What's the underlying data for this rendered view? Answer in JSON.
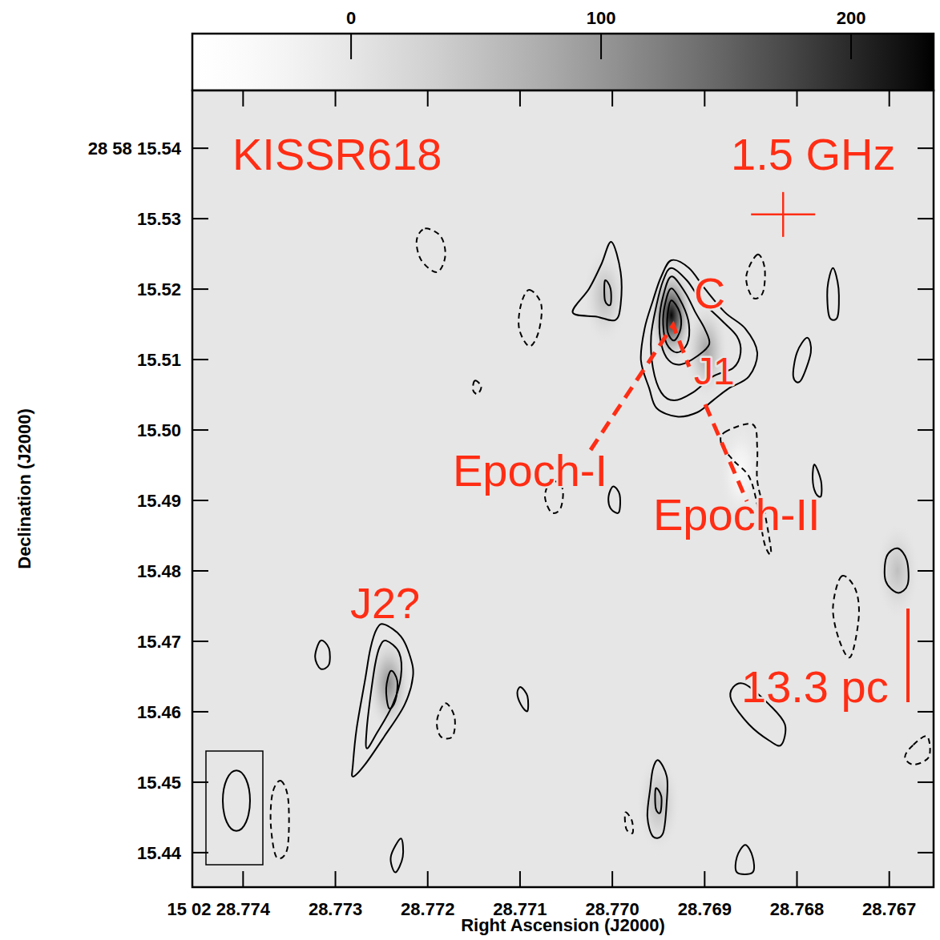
{
  "chart_data": {
    "type": "contour",
    "title": "KISSR618",
    "subtitle": "1.5 GHz",
    "x_label": "Right Ascension (J2000)",
    "y_label": "Declination (J2000)",
    "color": "#ff2d14",
    "xlim": [
      28.77455,
      28.76652
    ],
    "xticks": [
      {
        "value": 28.774,
        "label": "15 02 28.774"
      },
      28.773,
      28.772,
      28.771,
      {
        "value": 28.77,
        "label": "28.770"
      },
      28.769,
      28.768,
      28.767
    ],
    "ylim": [
      15.5482,
      15.4351
    ],
    "yticks": [
      {
        "value": 15.54,
        "label": "28 58 15.54"
      },
      15.53,
      15.52,
      15.51,
      {
        "value": 15.5,
        "label": "15.50"
      },
      15.49,
      15.48,
      15.47,
      15.46,
      15.45,
      15.44
    ],
    "colorbar": {
      "range": [
        -63.5,
        233
      ],
      "ticks": [
        0,
        100,
        200
      ]
    },
    "components": [
      {
        "ra": 28.76936,
        "dec": 15.5163,
        "peak": 230
      },
      {
        "ra": 28.76898,
        "dec": 15.5113,
        "peak": 90
      },
      {
        "ra": 28.77008,
        "dec": 15.519,
        "peak": 60
      },
      {
        "ra": 28.77242,
        "dec": 15.464,
        "peak": 110
      },
      {
        "ra": 28.7695,
        "dec": 15.447,
        "peak": 60
      },
      {
        "ra": 28.76691,
        "dec": 15.48,
        "peak": 55
      },
      {
        "ra": 28.76861,
        "dec": 15.494,
        "peak": -45
      }
    ],
    "beam": {
      "ra_width": 0.000295,
      "dec_height": 0.0086
    },
    "cross": {
      "ra": 28.76815,
      "dec": 15.5306
    },
    "scale_bar": {
      "value": 13.3,
      "label": "13.3 pc"
    },
    "annotations": [
      "C",
      "J1",
      "Epoch-I",
      "Epoch-II",
      "J2?"
    ],
    "contours": [
      {
        "level": 25,
        "ra": [
          28.76936,
          28.76917,
          28.769,
          28.76878,
          28.76856,
          28.76843,
          28.76852,
          28.76874,
          28.76891,
          28.76908,
          28.7693,
          28.76952,
          28.7696,
          28.76969,
          28.76965,
          28.76956,
          28.76947
        ],
        "dec": [
          15.5241,
          15.523,
          15.5201,
          15.5167,
          15.5144,
          15.511,
          15.5076,
          15.5059,
          15.5042,
          15.5025,
          15.5019,
          15.5031,
          15.5059,
          15.5099,
          15.5144,
          15.5184,
          15.5218
        ]
      },
      {
        "level": 50,
        "ra": [
          28.76936,
          28.76919,
          28.76904,
          28.76882,
          28.76865,
          28.76861,
          28.76869,
          28.76891,
          28.76913,
          28.76933,
          28.76947,
          28.76956,
          28.76958,
          28.76952,
          28.76945
        ],
        "dec": [
          15.523,
          15.5212,
          15.5184,
          15.5156,
          15.5133,
          15.511,
          15.5088,
          15.5076,
          15.5053,
          15.5042,
          15.5053,
          15.5088,
          15.5133,
          15.5178,
          15.5212
        ]
      },
      {
        "level": 100,
        "ra": [
          28.76936,
          28.76921,
          28.7691,
          28.769,
          28.76895,
          28.76908,
          28.76926,
          28.76939,
          28.76947,
          28.76949,
          28.76945
        ],
        "dec": [
          15.5218,
          15.5195,
          15.5167,
          15.5144,
          15.5122,
          15.5105,
          15.5093,
          15.5099,
          15.5122,
          15.5156,
          15.519
        ]
      },
      {
        "level": 150,
        "ra": [
          28.76936,
          28.76924,
          28.76917,
          28.76919,
          28.7693,
          28.76941,
          28.76945,
          28.76943
        ],
        "dec": [
          15.5201,
          15.5178,
          15.515,
          15.5122,
          15.511,
          15.5122,
          15.515,
          15.5178
        ]
      },
      {
        "level": 200,
        "ra": [
          28.76936,
          28.76927,
          28.76926,
          28.76933,
          28.7694,
          28.7694
        ],
        "dec": [
          15.5184,
          15.5167,
          15.5144,
          15.5127,
          15.5139,
          15.5165
        ]
      },
      {
        "level": 25,
        "ra": [
          28.77001,
          28.76991,
          28.76991,
          28.76997,
          28.77017,
          28.77043,
          28.77025,
          28.77012
        ],
        "dec": [
          15.5267,
          15.5224,
          15.5178,
          15.5156,
          15.5161,
          15.5167,
          15.5201,
          15.5235
        ]
      },
      {
        "level": 50,
        "ra": [
          28.77008,
          28.77002,
          28.77002,
          28.77008
        ],
        "dec": [
          15.5212,
          15.5201,
          15.5178,
          15.5184
        ]
      },
      {
        "level": 25,
        "ra": [
          28.77247,
          28.77229,
          28.77219,
          28.77216,
          28.77225,
          28.77247,
          28.77268,
          28.77281,
          28.77281,
          28.77277,
          28.77268,
          28.77262,
          28.77255
        ],
        "dec": [
          15.4724,
          15.4707,
          15.4678,
          15.465,
          15.461,
          15.4565,
          15.4525,
          15.4508,
          15.4525,
          15.4576,
          15.4644,
          15.469,
          15.4718
        ]
      },
      {
        "level": 50,
        "ra": [
          28.77245,
          28.77231,
          28.77229,
          28.77238,
          28.77255,
          28.77266,
          28.77266,
          28.77262,
          28.77257,
          28.77252
        ],
        "dec": [
          15.4701,
          15.4684,
          15.465,
          15.461,
          15.457,
          15.4548,
          15.4576,
          15.4622,
          15.4667,
          15.4692
        ]
      },
      {
        "level": 100,
        "ra": [
          28.7724,
          28.77233,
          28.77235,
          28.77242,
          28.77245
        ],
        "dec": [
          15.4658,
          15.4644,
          15.4616,
          15.4605,
          15.4633
        ]
      },
      {
        "level": 25,
        "ra": [
          28.77316,
          28.77307,
          28.77307,
          28.77316,
          28.77322
        ],
        "dec": [
          15.4701,
          15.469,
          15.4667,
          15.4661,
          15.4678
        ]
      },
      {
        "level": 25,
        "ra": [
          28.77099,
          28.77092,
          28.77092,
          28.77099,
          28.77103
        ],
        "dec": [
          15.4635,
          15.4622,
          15.4601,
          15.461,
          15.4627
        ]
      },
      {
        "level": 25,
        "ra": [
          28.7695,
          28.76941,
          28.76941,
          28.76945,
          28.76956,
          28.76962,
          28.76959,
          28.76956
        ],
        "dec": [
          15.4531,
          15.4508,
          15.4474,
          15.4428,
          15.4423,
          15.4451,
          15.4491,
          15.4519
        ]
      },
      {
        "level": 50,
        "ra": [
          28.76953,
          28.76947,
          28.76948,
          28.76953
        ],
        "dec": [
          15.4491,
          15.448,
          15.4457,
          15.4463
        ]
      },
      {
        "level": 25,
        "ra": [
          28.76691,
          28.76681,
          28.7668,
          28.76691,
          28.76704,
          28.76703
        ],
        "dec": [
          15.4832,
          15.4815,
          15.4781,
          15.4769,
          15.4786,
          15.482
        ]
      },
      {
        "level": 25,
        "ra": [
          28.76761,
          28.76755,
          28.76756,
          28.76765,
          28.76767
        ],
        "dec": [
          15.523,
          15.5201,
          15.5161,
          15.5161,
          15.5201
        ]
      },
      {
        "level": 25,
        "ra": [
          28.76789,
          28.76785,
          28.76796,
          28.76804,
          28.768
        ],
        "dec": [
          15.5131,
          15.511,
          15.507,
          15.5076,
          15.511
        ]
      },
      {
        "level": 25,
        "ra": [
          28.76869,
          28.76856,
          28.7683,
          28.76813,
          28.76817,
          28.7683,
          28.76852,
          28.76871
        ],
        "dec": [
          15.4635,
          15.4639,
          15.461,
          15.4582,
          15.4553,
          15.4559,
          15.4582,
          15.4616
        ]
      },
      {
        "level": 25,
        "ra": [
          28.77229,
          28.77227,
          28.77235,
          28.7724
        ],
        "dec": [
          15.442,
          15.4394,
          15.4372,
          15.4394
        ]
      },
      {
        "level": 25,
        "ra": [
          28.76999,
          28.76992,
          28.76993,
          28.77002,
          28.77004
        ],
        "dec": [
          15.492,
          15.4908,
          15.4883,
          15.4889,
          15.4906
        ]
      },
      {
        "level": 25,
        "ra": [
          28.76781,
          28.76774,
          28.76774,
          28.7678,
          28.76783
        ],
        "dec": [
          15.4951,
          15.4928,
          15.4906,
          15.4911,
          15.4931
        ]
      },
      {
        "level": 25,
        "ra": [
          28.76856,
          28.76848,
          28.76848,
          28.76865,
          28.76865
        ],
        "dec": [
          15.4411,
          15.4394,
          15.4372,
          15.4372,
          15.4394
        ]
      },
      {
        "level": -25,
        "ra": [
          28.77203,
          28.77186,
          28.77181,
          28.7719,
          28.77207,
          28.77212
        ],
        "dec": [
          15.5286,
          15.5275,
          15.5247,
          15.5224,
          15.5241,
          15.5269
        ]
      },
      {
        "level": -25,
        "ra": [
          28.7709,
          28.77077,
          28.7708,
          28.7709,
          28.77101,
          28.77099
        ],
        "dec": [
          15.5199,
          15.5178,
          15.5139,
          15.5119,
          15.5144,
          15.5178
        ]
      },
      {
        "level": -25,
        "ra": [
          28.76843,
          28.76835,
          28.76837,
          28.76848,
          28.76855
        ],
        "dec": [
          15.5249,
          15.523,
          15.5195,
          15.5188,
          15.5218
        ]
      },
      {
        "level": -25,
        "ra": [
          28.76878,
          28.76848,
          28.76843,
          28.76843,
          28.76835,
          28.76828,
          28.76835,
          28.76843,
          28.76852,
          28.76869,
          28.76882
        ],
        "dec": [
          15.4997,
          15.5008,
          15.4974,
          15.4928,
          15.4883,
          15.4826,
          15.4838,
          15.4894,
          15.4934,
          15.4957,
          15.498
        ]
      },
      {
        "level": -25,
        "ra": [
          28.76752,
          28.76737,
          28.76733,
          28.76742,
          28.76754,
          28.76761
        ],
        "dec": [
          15.4792,
          15.4775,
          15.4735,
          15.4678,
          15.4701,
          15.4747
        ]
      },
      {
        "level": -25,
        "ra": [
          28.77066,
          28.77054,
          28.77056,
          28.77066,
          28.77073
        ],
        "dec": [
          15.4928,
          15.4917,
          15.4889,
          15.4883,
          15.4906
        ]
      },
      {
        "level": -25,
        "ra": [
          28.77181,
          28.77171,
          28.77173,
          28.77186,
          28.7719
        ],
        "dec": [
          15.4612,
          15.4593,
          15.4565,
          15.4565,
          15.4588
        ]
      },
      {
        "level": -25,
        "ra": [
          28.77359,
          28.77351,
          28.77352,
          28.77364,
          28.7737,
          28.77368
        ],
        "dec": [
          15.4502,
          15.4474,
          15.4406,
          15.4394,
          15.444,
          15.4485
        ]
      },
      {
        "level": -25,
        "ra": [
          28.76986,
          28.76979,
          28.76978,
          28.76985
        ],
        "dec": [
          15.4457,
          15.4446,
          15.4428,
          15.4434
        ]
      },
      {
        "level": -25,
        "ra": [
          28.76674,
          28.76659,
          28.76657,
          28.76674,
          28.76683
        ],
        "dec": [
          15.4553,
          15.4565,
          15.4536,
          15.4525,
          15.4536
        ]
      },
      {
        "level": -25,
        "ra": [
          28.77149,
          28.77142,
          28.77146,
          28.77151
        ],
        "dec": [
          15.507,
          15.5062,
          15.5051,
          15.5057
        ]
      }
    ]
  }
}
